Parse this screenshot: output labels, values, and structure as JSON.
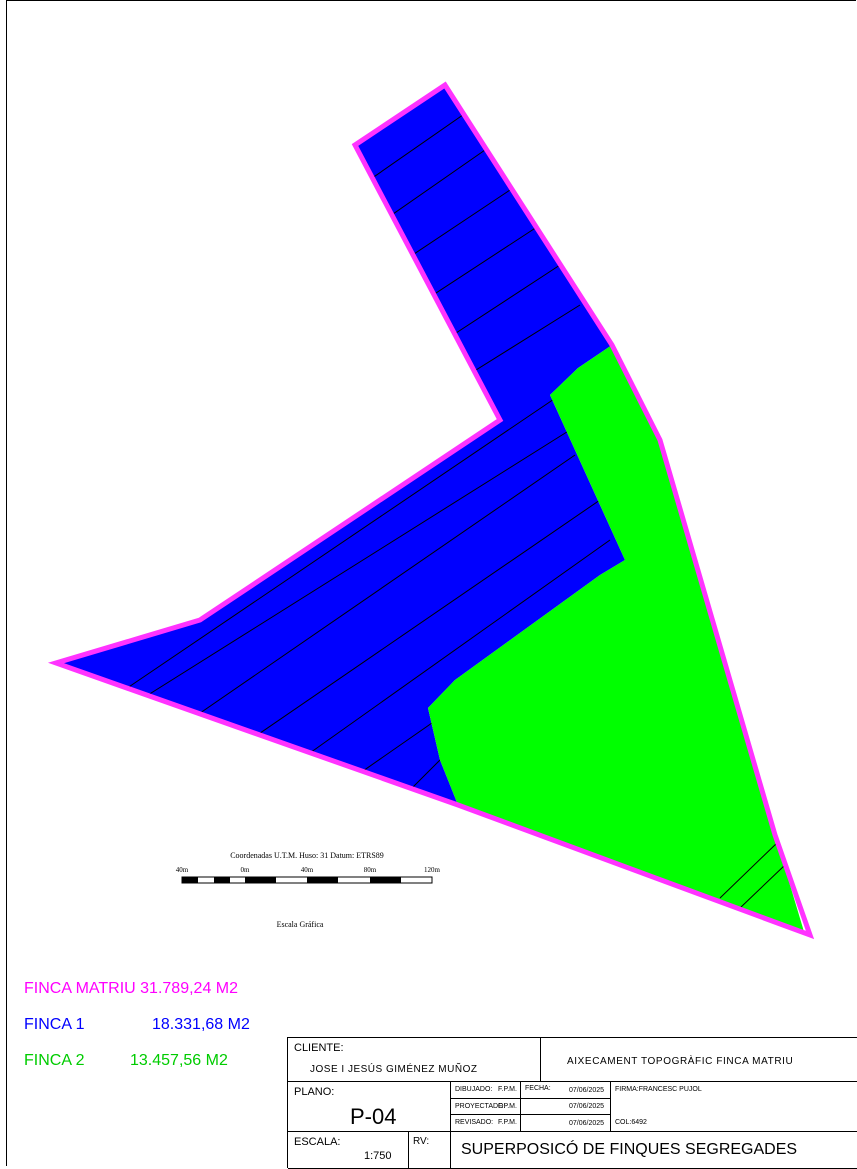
{
  "scale_bar": {
    "heading": "Coordenadas U.T.M. Huso: 31 Datum: ETRS89",
    "ticks": [
      "40m",
      "0m",
      "40m",
      "80m",
      "120m"
    ],
    "caption": "Escala Gráfica"
  },
  "legend": [
    {
      "label": "FINCA MATRIU",
      "value": "31.789,24 M2",
      "color": "#ff00ff"
    },
    {
      "label": "FINCA 1",
      "value": "18.331,68 M2",
      "color": "#0000ff"
    },
    {
      "label": "FINCA 2",
      "value": "13.457,56 M2",
      "color": "#00cc00"
    }
  ],
  "colors": {
    "boundary": "#ff33ff",
    "finca1_fill": "#0000ff",
    "finca2_fill": "#00ff00",
    "hatch": "#000000"
  },
  "title_block": {
    "cliente_label": "CLIENTE:",
    "cliente_value": "JOSE I JESÚS GIMÉNEZ MUÑOZ",
    "project_title": "AIXECAMENT TOPOGRÀFIC FINCA MATRIU",
    "plano_label": "PLANO:",
    "plano_value": "P-04",
    "dibujado_label": "DIBUJADO:",
    "dibujado_value": "F.P.M.",
    "proyectado_label": "PROYECTADO:",
    "proyectado_value": "F.P.M.",
    "revisado_label": "REVISADO:",
    "revisado_value": "F.P.M.",
    "fecha_label": "FECHA:",
    "fecha_values": [
      "07/06/2025",
      "07/06/2025",
      "07/06/2025"
    ],
    "firma": "FIRMA:FRANCESC PUJOL",
    "col": "COL:6492",
    "escala_label": "ESCALA:",
    "escala_value": "1:750",
    "rv_label": "RV:",
    "drawing_title": "SUPERPOSICÓ DE FINQUES SEGREGADES"
  }
}
